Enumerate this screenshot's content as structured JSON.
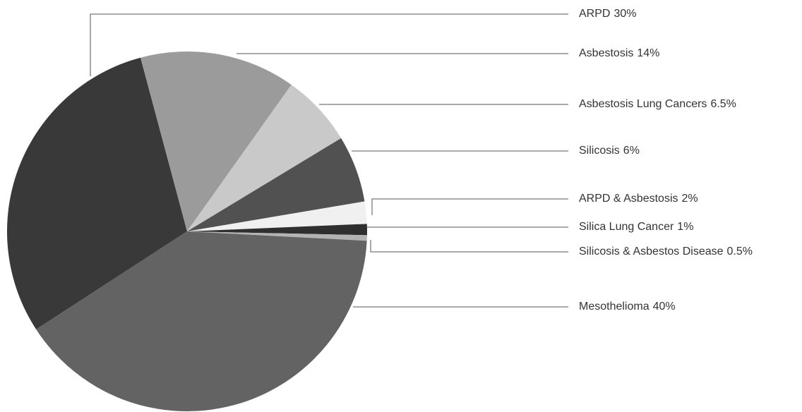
{
  "chart_data": {
    "type": "pie",
    "categories": [
      "ARPD",
      "Asbestosis",
      "Asbestosis Lung Cancers",
      "Silicosis",
      "ARPD & Asbestosis",
      "Silica Lung Cancer",
      "Silicosis & Asbestos Disease",
      "Mesothelioma"
    ],
    "values": [
      30,
      14,
      6.5,
      6,
      2,
      1,
      0.5,
      40
    ],
    "value_labels": [
      "30%",
      "14%",
      "6.5%",
      "6%",
      "2%",
      "1%",
      "0.5%",
      "40%"
    ],
    "colors": [
      "#393939",
      "#9b9b9b",
      "#c9c9c9",
      "#515151",
      "#f0f0f0",
      "#2f2f2f",
      "#b3b3b3",
      "#636363"
    ]
  }
}
